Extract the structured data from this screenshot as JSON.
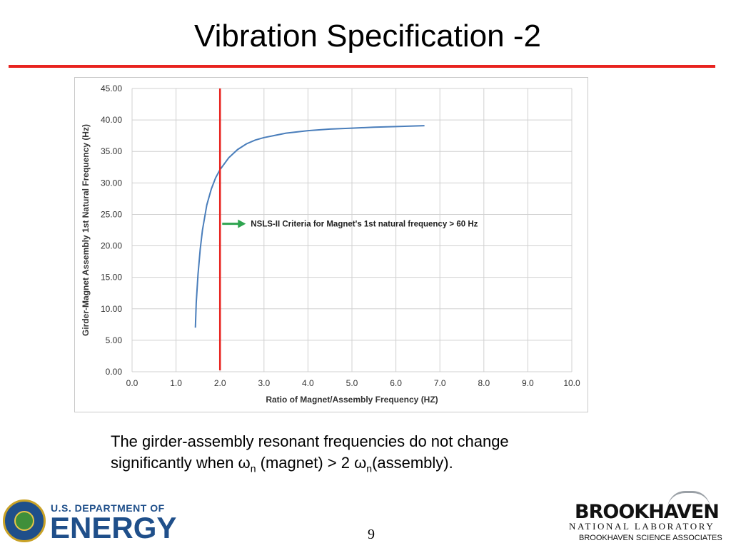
{
  "slide": {
    "title": "Vibration Specification -2",
    "page_number": "9"
  },
  "caption": {
    "line1": "The girder-assembly resonant frequencies do not change",
    "line2_part1": "significantly when ω",
    "sub1": "n",
    "line2_part2": " (magnet)  >  2 ω",
    "sub2": "n",
    "line2_part3": "(assembly)."
  },
  "logos": {
    "doe_line1": "U.S. DEPARTMENT OF",
    "doe_line2": "ENERGY",
    "bnl_name": "BROOKHAVEN",
    "bnl_sub": "NATIONAL LABORATORY",
    "bnl_assoc": "BROOKHAVEN SCIENCE ASSOCIATES"
  },
  "chart_data": {
    "type": "line",
    "xlabel": "Ratio of Magnet/Assembly Frequency (HZ)",
    "ylabel": "Girder-Magnet Assembly 1st Natural Frequency (Hz)",
    "xlim": [
      0,
      10
    ],
    "ylim": [
      0,
      45
    ],
    "x_ticks": [
      "0.0",
      "1.0",
      "2.0",
      "3.0",
      "4.0",
      "5.0",
      "6.0",
      "7.0",
      "8.0",
      "9.0",
      "10.0"
    ],
    "y_ticks": [
      "0.00",
      "5.00",
      "10.00",
      "15.00",
      "20.00",
      "25.00",
      "30.00",
      "35.00",
      "40.00",
      "45.00"
    ],
    "grid": true,
    "series": [
      {
        "color": "#4a7ebb",
        "x": [
          1.44,
          1.46,
          1.5,
          1.55,
          1.6,
          1.7,
          1.8,
          1.9,
          2.0,
          2.2,
          2.4,
          2.6,
          2.8,
          3.0,
          3.5,
          4.0,
          4.5,
          5.0,
          5.5,
          6.0,
          6.65
        ],
        "y": [
          7.0,
          11.0,
          15.5,
          19.5,
          22.5,
          26.5,
          29.0,
          30.8,
          32.1,
          34.0,
          35.3,
          36.2,
          36.8,
          37.2,
          37.9,
          38.3,
          38.55,
          38.7,
          38.85,
          38.95,
          39.1
        ]
      }
    ],
    "marker_line": {
      "x": 2.0,
      "color": "#e8231f"
    },
    "annotation": {
      "text": "NSLS-II Criteria for Magnet's 1st natural frequency > 60 Hz",
      "arrow_color": "#2ea44f",
      "x": 2.05,
      "y": 23.5
    }
  }
}
